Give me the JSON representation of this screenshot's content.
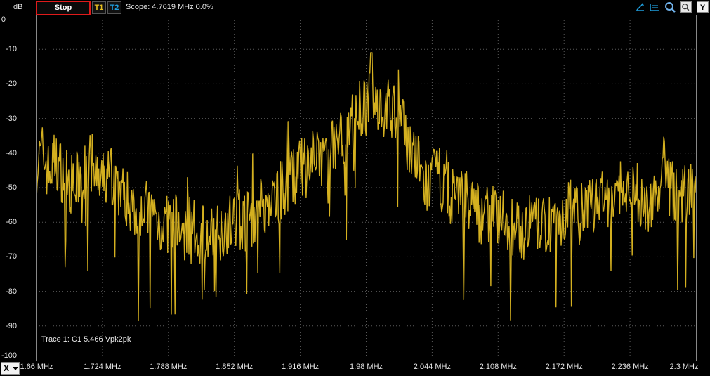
{
  "toolbar": {
    "unit": "dB",
    "stop_label": "Stop",
    "t1_label": "T1",
    "t2_label": "T2",
    "scope_text": "Scope: 4.7619 MHz  0.0%",
    "y_label": "Y",
    "icons": [
      "cursor-pick-icon",
      "cursor-lines-icon",
      "zoom-icon",
      "zoom-fit-icon"
    ]
  },
  "trace_info": "Trace 1: C1 5.466 Vpk2pk",
  "x_axis_selector": "X",
  "colors": {
    "trace": "#d4b020",
    "grid": "#5a5a5a",
    "stop_border": "#e01b1b",
    "t1": "#e8c020",
    "t2": "#1fa0e0"
  },
  "chart_data": {
    "type": "line",
    "xlabel": "",
    "ylabel": "dB",
    "xlim": [
      1.66,
      2.3
    ],
    "ylim": [
      -100,
      0
    ],
    "grid": true,
    "x_tick_labels": [
      "1.66 MHz",
      "1.724 MHz",
      "1.788 MHz",
      "1.852 MHz",
      "1.916 MHz",
      "1.98 MHz",
      "2.044 MHz",
      "2.108 MHz",
      "2.172 MHz",
      "2.236 MHz",
      "2.3 MHz"
    ],
    "y_tick_labels": [
      "0",
      "-10",
      "-20",
      "-30",
      "-40",
      "-50",
      "-60",
      "-70",
      "-80",
      "-90",
      "-100"
    ],
    "y_ticks": [
      0,
      -10,
      -20,
      -30,
      -40,
      -50,
      -60,
      -70,
      -80,
      -90,
      -100
    ],
    "series": [
      {
        "x": [
          1.66,
          1.666,
          1.672,
          1.678,
          1.684,
          1.69,
          1.696,
          1.702,
          1.708,
          1.714,
          1.72,
          1.726,
          1.732,
          1.738,
          1.744,
          1.75,
          1.756,
          1.762,
          1.768,
          1.774,
          1.78,
          1.786,
          1.792,
          1.798,
          1.804,
          1.81,
          1.816,
          1.822,
          1.828,
          1.834,
          1.84,
          1.846,
          1.852,
          1.858,
          1.864,
          1.87,
          1.876,
          1.882,
          1.888,
          1.894,
          1.9,
          1.906,
          1.912,
          1.918,
          1.924,
          1.93,
          1.936,
          1.942,
          1.948,
          1.954,
          1.96,
          1.966,
          1.972,
          1.978,
          1.984,
          1.99,
          1.996,
          2.002,
          2.008,
          2.014,
          2.02,
          2.026,
          2.032,
          2.038,
          2.044,
          2.05,
          2.056,
          2.062,
          2.068,
          2.074,
          2.08,
          2.086,
          2.092,
          2.098,
          2.104,
          2.11,
          2.116,
          2.122,
          2.128,
          2.134,
          2.14,
          2.146,
          2.152,
          2.158,
          2.164,
          2.17,
          2.176,
          2.182,
          2.188,
          2.194,
          2.2,
          2.206,
          2.212,
          2.218,
          2.224,
          2.23,
          2.236,
          2.242,
          2.248,
          2.254,
          2.26,
          2.266,
          2.272,
          2.278,
          2.284,
          2.29,
          2.296,
          2.3
        ],
        "y": [
          -44,
          -40,
          -46,
          -42,
          -45,
          -48,
          -50,
          -47,
          -45,
          -43,
          -50,
          -48,
          -45,
          -49,
          -52,
          -54,
          -56,
          -55,
          -57,
          -58,
          -60,
          -61,
          -59,
          -62,
          -63,
          -61,
          -64,
          -62,
          -65,
          -63,
          -62,
          -60,
          -61,
          -59,
          -60,
          -58,
          -56,
          -55,
          -54,
          -52,
          -50,
          -48,
          -46,
          -44,
          -45,
          -43,
          -42,
          -40,
          -38,
          -36,
          -34,
          -31,
          -28,
          -27,
          -25,
          -24,
          -28,
          -27,
          -29,
          -32,
          -36,
          -40,
          -45,
          -50,
          -48,
          -46,
          -50,
          -52,
          -51,
          -54,
          -53,
          -56,
          -58,
          -57,
          -59,
          -58,
          -60,
          -62,
          -61,
          -63,
          -60,
          -61,
          -62,
          -60,
          -59,
          -58,
          -57,
          -56,
          -58,
          -56,
          -55,
          -54,
          -53,
          -56,
          -54,
          -52,
          -53,
          -51,
          -55,
          -54,
          -52,
          -50,
          -48,
          -51,
          -54,
          -52,
          -50,
          -50
        ]
      }
    ]
  }
}
